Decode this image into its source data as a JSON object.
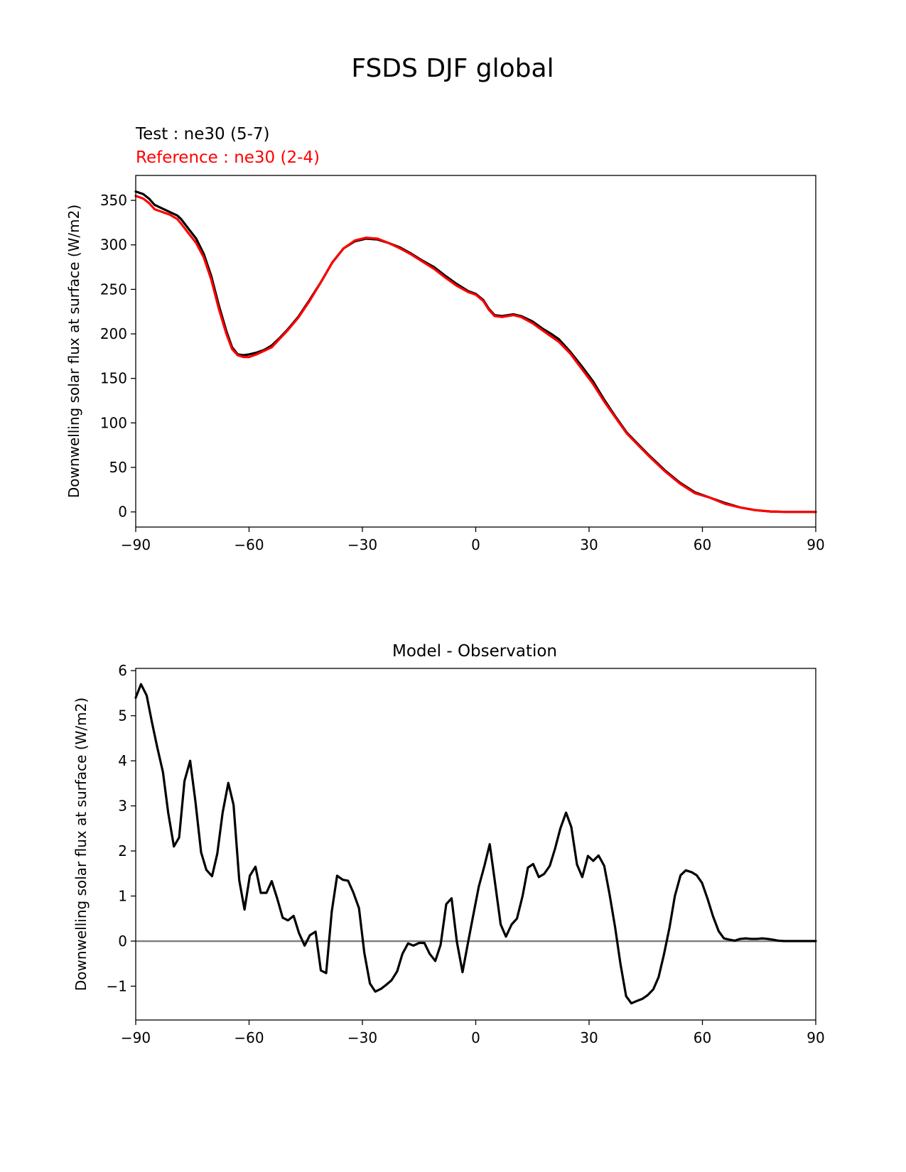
{
  "figure": {
    "title": "FSDS DJF global"
  },
  "chart_data": [
    {
      "type": "line",
      "test_label": "Test : ne30 (5-7)",
      "reference_label": "Reference : ne30 (2-4)",
      "title": "",
      "xlabel": "",
      "ylabel": "Downwelling solar flux at surface (W/m2)",
      "xlim": [
        -90,
        90
      ],
      "ylim": [
        -17,
        378
      ],
      "xticks": [
        -90,
        -60,
        -30,
        0,
        30,
        60,
        90
      ],
      "xtick_labels": [
        "−90",
        "−60",
        "−30",
        "0",
        "30",
        "60",
        "90"
      ],
      "yticks": [
        0,
        50,
        100,
        150,
        200,
        250,
        300,
        350
      ],
      "ytick_labels": [
        "0",
        "50",
        "100",
        "150",
        "200",
        "250",
        "300",
        "350"
      ],
      "series": [
        {
          "name": "Test : ne30 (5-7)",
          "color": "#000000",
          "x": [
            -90,
            -88,
            -86.5,
            -85,
            -83,
            -81,
            -79,
            -78,
            -76,
            -74,
            -72,
            -70,
            -68,
            -66,
            -64.5,
            -63,
            -61.5,
            -60,
            -58,
            -56,
            -54,
            -52,
            -50,
            -47,
            -44,
            -41,
            -38,
            -35,
            -32,
            -29,
            -26,
            -23,
            -20,
            -17,
            -14,
            -11,
            -8,
            -5,
            -2,
            0,
            2,
            3.5,
            5,
            7,
            10,
            12,
            15,
            18,
            20,
            22,
            25,
            28,
            31,
            34,
            37,
            40,
            43,
            46,
            50,
            54,
            58,
            62,
            66,
            70,
            74,
            78,
            82,
            86,
            90
          ],
          "y": [
            360,
            357,
            352,
            345,
            341,
            337,
            333,
            329,
            318,
            307,
            290,
            265,
            232,
            203,
            185,
            177,
            176,
            177,
            179,
            182,
            187,
            195,
            204,
            219,
            238,
            258,
            280,
            296,
            304,
            307,
            306,
            302,
            297,
            290,
            282,
            275,
            265,
            256,
            248,
            245,
            238,
            228,
            221,
            220,
            222,
            220,
            214,
            205,
            200,
            194,
            180,
            164,
            147,
            126,
            107,
            89,
            76,
            63,
            47,
            33,
            22,
            16,
            10,
            5,
            2,
            0.5,
            0,
            0,
            0
          ]
        },
        {
          "name": "Reference : ne30 (2-4)",
          "color": "#ff0000",
          "x": [
            -90,
            -88,
            -86.5,
            -85,
            -83,
            -81,
            -79,
            -78,
            -76,
            -74,
            -72,
            -70,
            -68,
            -66,
            -64.5,
            -63,
            -61.5,
            -60,
            -58,
            -56,
            -54,
            -52,
            -50,
            -47,
            -44,
            -41,
            -38,
            -35,
            -32,
            -29,
            -26,
            -23,
            -20,
            -17,
            -14,
            -11,
            -8,
            -5,
            -2,
            0,
            2,
            3.5,
            5,
            7,
            10,
            12,
            15,
            18,
            20,
            22,
            25,
            28,
            31,
            34,
            37,
            40,
            43,
            46,
            50,
            54,
            58,
            62,
            66,
            70,
            74,
            78,
            82,
            86,
            90
          ],
          "y": [
            355,
            352,
            347,
            340,
            337,
            334,
            329,
            324,
            313,
            302,
            286,
            261,
            228,
            200,
            183,
            176,
            174,
            174,
            177,
            181,
            185,
            194,
            203,
            218,
            237,
            258,
            280,
            296,
            305,
            308,
            307,
            302,
            296,
            289,
            281,
            273,
            263,
            254,
            247,
            244,
            237,
            227,
            220,
            219,
            221,
            219,
            212,
            203,
            197,
            191,
            178,
            161,
            144,
            124,
            106,
            88,
            75,
            62,
            46,
            32,
            21,
            16,
            9,
            5,
            2,
            0.5,
            0,
            0,
            0
          ]
        }
      ]
    },
    {
      "type": "line",
      "title": "Model - Observation",
      "xlabel": "",
      "ylabel": "Downwelling solar flux at surface (W/m2)",
      "xlim": [
        -90,
        90
      ],
      "ylim": [
        -1.75,
        6.05
      ],
      "xticks": [
        -90,
        -60,
        -30,
        0,
        30,
        60,
        90
      ],
      "xtick_labels": [
        "−90",
        "−60",
        "−30",
        "0",
        "30",
        "60",
        "90"
      ],
      "yticks": [
        -1,
        0,
        1,
        2,
        3,
        4,
        5,
        6
      ],
      "ytick_labels": [
        "−1",
        "0",
        "1",
        "2",
        "3",
        "4",
        "5",
        "6"
      ],
      "zero_line": {
        "y": 0,
        "color": "#808080"
      },
      "series": [
        {
          "name": "Model - Observation",
          "color": "#000000",
          "x": [
            -90,
            -88.6,
            -87.1,
            -85.7,
            -84.3,
            -82.8,
            -81.4,
            -79.9,
            -78.5,
            -77.1,
            -75.6,
            -74.2,
            -72.7,
            -71.3,
            -69.8,
            -68.4,
            -67,
            -65.5,
            -64.1,
            -62.6,
            -61.2,
            -59.8,
            -58.3,
            -56.9,
            -55.4,
            -54,
            -52.5,
            -51.1,
            -49.7,
            -48.2,
            -46.8,
            -45.3,
            -43.9,
            -42.4,
            -41,
            -39.6,
            -38.1,
            -36.7,
            -35.2,
            -33.8,
            -32.4,
            -30.9,
            -29.5,
            -28,
            -26.6,
            -25.1,
            -23.7,
            -22.3,
            -20.8,
            -19.4,
            -17.9,
            -16.5,
            -15,
            -13.6,
            -12.2,
            -10.7,
            -9.3,
            -7.8,
            -6.4,
            -5,
            -3.5,
            -2.1,
            -0.6,
            0.8,
            2.3,
            3.7,
            5.1,
            6.6,
            8,
            9.5,
            10.9,
            12.4,
            13.8,
            15.2,
            16.7,
            18.1,
            19.6,
            21,
            22.4,
            23.9,
            25.3,
            26.8,
            28.2,
            29.7,
            31.1,
            32.5,
            34,
            35.4,
            36.9,
            38.3,
            39.8,
            41.2,
            42.6,
            44.1,
            45.5,
            47,
            48.4,
            49.8,
            51.3,
            52.7,
            54.2,
            55.6,
            57.1,
            58.5,
            59.9,
            61.4,
            62.8,
            64.3,
            65.7,
            67.2,
            68.6,
            70,
            71.5,
            72.9,
            74.4,
            75.8,
            77.3,
            78.7,
            80.1,
            81.6,
            83,
            84.5,
            85.9,
            87.3,
            88.8,
            90
          ],
          "y": [
            5.4,
            5.7,
            5.45,
            4.85,
            4.3,
            3.75,
            2.85,
            2.1,
            2.3,
            3.55,
            4,
            3.1,
            1.97,
            1.58,
            1.44,
            1.94,
            2.85,
            3.51,
            3.02,
            1.35,
            0.7,
            1.45,
            1.65,
            1.07,
            1.07,
            1.33,
            0.93,
            0.52,
            0.46,
            0.56,
            0.18,
            -0.1,
            0.13,
            0.21,
            -0.65,
            -0.71,
            0.66,
            1.45,
            1.36,
            1.34,
            1.08,
            0.73,
            -0.26,
            -0.94,
            -1.12,
            -1.06,
            -0.97,
            -0.87,
            -0.67,
            -0.28,
            -0.05,
            -0.1,
            -0.04,
            -0.04,
            -0.28,
            -0.44,
            -0.08,
            0.82,
            0.95,
            -0.01,
            -0.69,
            -0.06,
            0.6,
            1.21,
            1.67,
            2.15,
            1.3,
            0.37,
            0.1,
            0.37,
            0.5,
            1,
            1.63,
            1.71,
            1.42,
            1.49,
            1.67,
            2.05,
            2.5,
            2.85,
            2.53,
            1.7,
            1.42,
            1.89,
            1.78,
            1.9,
            1.67,
            1.05,
            0.3,
            -0.5,
            -1.22,
            -1.38,
            -1.33,
            -1.28,
            -1.2,
            -1.07,
            -0.8,
            -0.3,
            0.3,
            1,
            1.46,
            1.57,
            1.53,
            1.46,
            1.29,
            0.93,
            0.55,
            0.22,
            0.06,
            0.03,
            0.01,
            0.05,
            0.06,
            0.05,
            0.05,
            0.06,
            0.05,
            0.03,
            0.01,
            0,
            0,
            0,
            0,
            0,
            0,
            0
          ]
        }
      ]
    }
  ]
}
